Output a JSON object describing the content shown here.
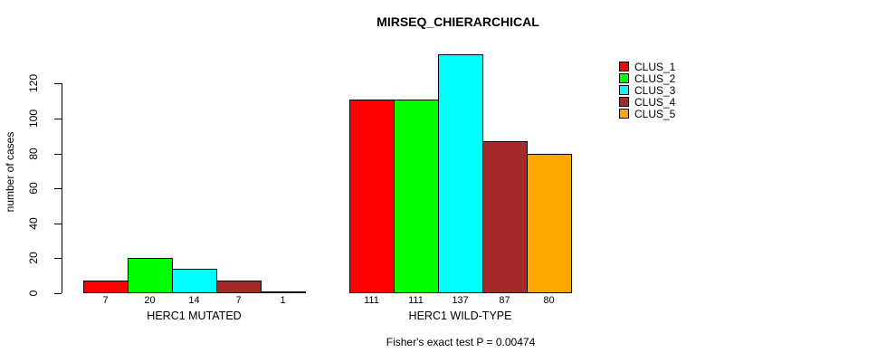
{
  "title": "MIRSEQ_CHIERARCHICAL",
  "chart_data": {
    "type": "bar",
    "title": "MIRSEQ_CHIERARCHICAL",
    "ylabel": "number of cases",
    "xlabel": "",
    "ylim": [
      0,
      140
    ],
    "yticks": [
      0,
      20,
      40,
      60,
      80,
      100,
      120
    ],
    "grid": false,
    "legend_position": "right",
    "show_value_labels": true,
    "categories": [
      "HERC1 MUTATED",
      "HERC1 WILD-TYPE"
    ],
    "series": [
      {
        "name": "CLUS_1",
        "color": "#FF0000",
        "values": [
          7,
          111
        ]
      },
      {
        "name": "CLUS_2",
        "color": "#00FF00",
        "values": [
          20,
          111
        ]
      },
      {
        "name": "CLUS_3",
        "color": "#00FFFF",
        "values": [
          14,
          137
        ]
      },
      {
        "name": "CLUS_4",
        "color": "#A52A2A",
        "values": [
          7,
          87
        ]
      },
      {
        "name": "CLUS_5",
        "color": "#FFA500",
        "values": [
          1,
          80
        ]
      }
    ],
    "annotation": "Fisher's exact test P = 0.00474"
  }
}
